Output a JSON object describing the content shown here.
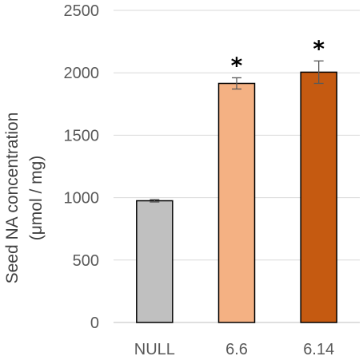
{
  "chart_data": {
    "type": "bar",
    "categories": [
      "NULL",
      "6.6",
      "6.14"
    ],
    "values": [
      975,
      1915,
      2005
    ],
    "errors": [
      10,
      45,
      90
    ],
    "significance": [
      "",
      "*",
      "*"
    ],
    "colors": [
      "#c0c0c0",
      "#f4b183",
      "#c55a11"
    ],
    "ylabel_line1": "Seed NA concentration",
    "ylabel_line2": "(μmol / mg)",
    "ylim": [
      0,
      2500
    ],
    "yticks": [
      0,
      500,
      1000,
      1500,
      2000,
      2500
    ],
    "grid": true,
    "gridline_color": "#d9d9d9"
  }
}
